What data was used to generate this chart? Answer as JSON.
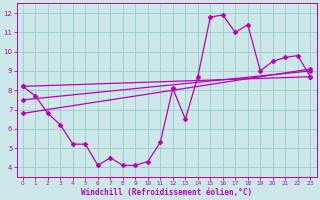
{
  "xlabel": "Windchill (Refroidissement éolien,°C)",
  "bg_color": "#cce8e8",
  "grid_color": "#99cccc",
  "line_color": "#bb00bb",
  "x_hours": [
    0,
    1,
    2,
    3,
    4,
    5,
    6,
    7,
    8,
    9,
    10,
    11,
    12,
    13,
    14,
    15,
    16,
    17,
    18,
    19,
    20,
    21,
    22,
    23
  ],
  "temp_line": [
    8.2,
    7.7,
    6.8,
    6.2,
    5.2,
    5.2,
    4.1,
    4.5,
    4.1,
    4.1,
    4.3,
    5.3,
    8.1,
    6.5,
    8.7,
    11.8,
    11.9,
    11.0,
    11.4,
    9.0,
    9.5,
    9.7,
    9.8,
    8.7
  ],
  "linear1_pts": [
    [
      0,
      8.2
    ],
    [
      23,
      8.7
    ]
  ],
  "linear2_pts": [
    [
      0,
      7.5
    ],
    [
      23,
      9.0
    ]
  ],
  "linear3_pts": [
    [
      0,
      6.8
    ],
    [
      23,
      9.1
    ]
  ],
  "ylim": [
    3.5,
    12.5
  ],
  "xlim": [
    -0.5,
    23.5
  ],
  "yticks": [
    4,
    5,
    6,
    7,
    8,
    9,
    10,
    11,
    12
  ],
  "xticks": [
    0,
    1,
    2,
    3,
    4,
    5,
    6,
    7,
    8,
    9,
    10,
    11,
    12,
    13,
    14,
    15,
    16,
    17,
    18,
    19,
    20,
    21,
    22,
    23
  ]
}
